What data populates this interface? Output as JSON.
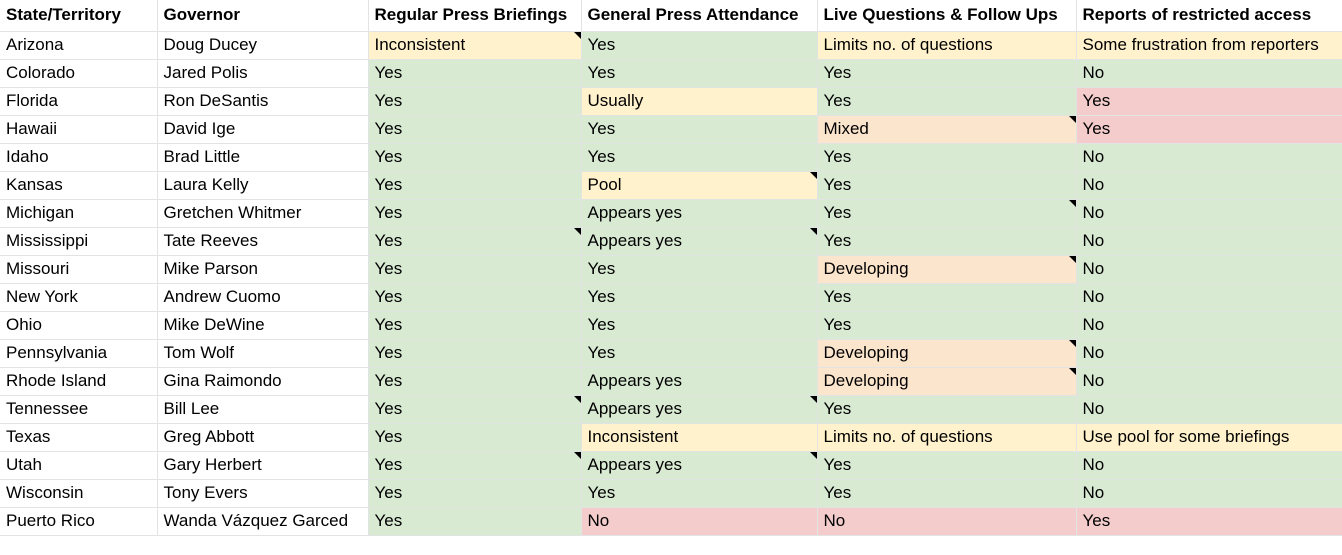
{
  "headers": [
    "State/Territory",
    "Governor",
    "Regular Press Briefings",
    "General Press Attendance",
    "Live Questions & Follow Ups",
    "Reports of restricted access"
  ],
  "rows": [
    {
      "state": "Arizona",
      "governor": "Doug Ducey",
      "briefings": "Inconsistent",
      "attendance": "Yes",
      "questions": "Limits no. of questions",
      "restricted": "Some frustration from reporters",
      "colors": [
        "",
        "",
        "y",
        "g",
        "y",
        "y"
      ],
      "notes": [
        false,
        false,
        true,
        false,
        false,
        false
      ]
    },
    {
      "state": "Colorado",
      "governor": "Jared Polis",
      "briefings": "Yes",
      "attendance": "Yes",
      "questions": "Yes",
      "restricted": "No",
      "colors": [
        "",
        "",
        "g",
        "g",
        "g",
        "g"
      ],
      "notes": [
        false,
        false,
        false,
        false,
        false,
        false
      ]
    },
    {
      "state": "Florida",
      "governor": "Ron DeSantis",
      "briefings": "Yes",
      "attendance": "Usually",
      "questions": "Yes",
      "restricted": "Yes",
      "colors": [
        "",
        "",
        "g",
        "y",
        "g",
        "r"
      ],
      "notes": [
        false,
        false,
        false,
        false,
        false,
        false
      ]
    },
    {
      "state": "Hawaii",
      "governor": "David Ige",
      "briefings": "Yes",
      "attendance": "Yes",
      "questions": "Mixed",
      "restricted": "Yes",
      "colors": [
        "",
        "",
        "g",
        "g",
        "o",
        "r"
      ],
      "notes": [
        false,
        false,
        false,
        false,
        true,
        false
      ]
    },
    {
      "state": "Idaho",
      "governor": "Brad Little",
      "briefings": "Yes",
      "attendance": "Yes",
      "questions": "Yes",
      "restricted": "No",
      "colors": [
        "",
        "",
        "g",
        "g",
        "g",
        "g"
      ],
      "notes": [
        false,
        false,
        false,
        false,
        false,
        false
      ]
    },
    {
      "state": "Kansas",
      "governor": "Laura Kelly",
      "briefings": "Yes",
      "attendance": "Pool",
      "questions": "Yes",
      "restricted": "No",
      "colors": [
        "",
        "",
        "g",
        "y",
        "g",
        "g"
      ],
      "notes": [
        false,
        false,
        false,
        true,
        false,
        false
      ]
    },
    {
      "state": "Michigan",
      "governor": "Gretchen Whitmer",
      "briefings": "Yes",
      "attendance": "Appears yes",
      "questions": "Yes",
      "restricted": "No",
      "colors": [
        "",
        "",
        "g",
        "g",
        "g",
        "g"
      ],
      "notes": [
        false,
        false,
        false,
        false,
        true,
        false
      ]
    },
    {
      "state": "Mississippi",
      "governor": "Tate Reeves",
      "briefings": "Yes",
      "attendance": "Appears yes",
      "questions": "Yes",
      "restricted": "No",
      "colors": [
        "",
        "",
        "g",
        "g",
        "g",
        "g"
      ],
      "notes": [
        false,
        false,
        true,
        true,
        false,
        false
      ]
    },
    {
      "state": "Missouri",
      "governor": "Mike Parson",
      "briefings": "Yes",
      "attendance": "Yes",
      "questions": "Developing",
      "restricted": "No",
      "colors": [
        "",
        "",
        "g",
        "g",
        "o",
        "g"
      ],
      "notes": [
        false,
        false,
        false,
        false,
        true,
        false
      ]
    },
    {
      "state": "New York",
      "governor": "Andrew Cuomo",
      "briefings": "Yes",
      "attendance": "Yes",
      "questions": "Yes",
      "restricted": "No",
      "colors": [
        "",
        "",
        "g",
        "g",
        "g",
        "g"
      ],
      "notes": [
        false,
        false,
        false,
        false,
        false,
        false
      ]
    },
    {
      "state": "Ohio",
      "governor": "Mike DeWine",
      "briefings": "Yes",
      "attendance": "Yes",
      "questions": "Yes",
      "restricted": "No",
      "colors": [
        "",
        "",
        "g",
        "g",
        "g",
        "g"
      ],
      "notes": [
        false,
        false,
        false,
        false,
        false,
        false
      ]
    },
    {
      "state": "Pennsylvania",
      "governor": "Tom Wolf",
      "briefings": "Yes",
      "attendance": "Yes",
      "questions": "Developing",
      "restricted": "No",
      "colors": [
        "",
        "",
        "g",
        "g",
        "o",
        "g"
      ],
      "notes": [
        false,
        false,
        false,
        false,
        true,
        false
      ]
    },
    {
      "state": "Rhode Island",
      "governor": "Gina Raimondo",
      "briefings": "Yes",
      "attendance": "Appears yes",
      "questions": "Developing",
      "restricted": "No",
      "colors": [
        "",
        "",
        "g",
        "g",
        "o",
        "g"
      ],
      "notes": [
        false,
        false,
        false,
        false,
        true,
        false
      ]
    },
    {
      "state": "Tennessee",
      "governor": "Bill Lee",
      "briefings": "Yes",
      "attendance": "Appears yes",
      "questions": "Yes",
      "restricted": "No",
      "colors": [
        "",
        "",
        "g",
        "g",
        "g",
        "g"
      ],
      "notes": [
        false,
        false,
        true,
        true,
        false,
        false
      ]
    },
    {
      "state": "Texas",
      "governor": "Greg Abbott",
      "briefings": "Yes",
      "attendance": "Inconsistent",
      "questions": "Limits no. of questions",
      "restricted": "Use pool for some briefings",
      "colors": [
        "",
        "",
        "g",
        "y",
        "y",
        "y"
      ],
      "notes": [
        false,
        false,
        false,
        false,
        false,
        false
      ]
    },
    {
      "state": "Utah",
      "governor": "Gary Herbert",
      "briefings": "Yes",
      "attendance": "Appears yes",
      "questions": "Yes",
      "restricted": "No",
      "colors": [
        "",
        "",
        "g",
        "g",
        "g",
        "g"
      ],
      "notes": [
        false,
        false,
        true,
        true,
        false,
        false
      ]
    },
    {
      "state": "Wisconsin",
      "governor": "Tony Evers",
      "briefings": "Yes",
      "attendance": "Yes",
      "questions": "Yes",
      "restricted": "No",
      "colors": [
        "",
        "",
        "g",
        "g",
        "g",
        "g"
      ],
      "notes": [
        false,
        false,
        false,
        false,
        false,
        false
      ]
    },
    {
      "state": "Puerto Rico",
      "governor": "Wanda Vázquez Garced",
      "briefings": "Yes",
      "attendance": "No",
      "questions": "No",
      "restricted": "Yes",
      "colors": [
        "",
        "",
        "g",
        "r",
        "r",
        "r"
      ],
      "notes": [
        false,
        false,
        false,
        false,
        false,
        false
      ]
    }
  ],
  "cell_colors": {
    "g": "#d9ead3",
    "y": "#fff2cc",
    "o": "#fce5cd",
    "r": "#f4cccc"
  }
}
